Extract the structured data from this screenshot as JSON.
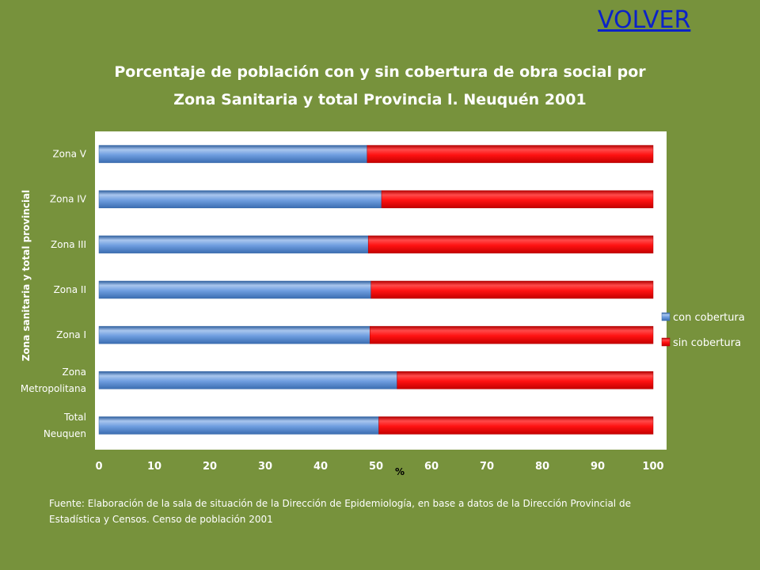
{
  "nav": {
    "back_link": "VOLVER"
  },
  "footnote": "Fuente: Elaboración de la sala de situación de la Dirección de Epidemiología, en base a datos de la Dirección Provincial de Estadística y Censos. Censo de población 2001",
  "chart_data": {
    "type": "bar",
    "orientation": "horizontal",
    "stacked": true,
    "title": "Porcentaje de población con y sin cobertura de obra social por Zona Sanitaria  y total  Provincia l. Neuquén 2001",
    "xlabel": "%",
    "ylabel": "Zona sanitaria  y total provincial",
    "xlim": [
      0,
      100
    ],
    "xticks": [
      0,
      10,
      20,
      30,
      40,
      50,
      60,
      70,
      80,
      90,
      100
    ],
    "grid": false,
    "legend_position": "right",
    "categories": [
      [
        "Total",
        "Neuquen"
      ],
      [
        "Zona",
        "Metropolitana"
      ],
      [
        "Zona I"
      ],
      [
        "Zona II"
      ],
      [
        "Zona III"
      ],
      [
        "Zona IV"
      ],
      [
        "Zona V"
      ]
    ],
    "series": [
      {
        "name": "con cobertura",
        "color": "#4f81bd",
        "values": [
          50.5,
          53.8,
          48.9,
          49.1,
          48.6,
          51.0,
          48.4
        ]
      },
      {
        "name": "sin cobertura",
        "color": "#ff0000",
        "values": [
          49.5,
          46.2,
          51.1,
          50.9,
          51.4,
          49.0,
          51.6
        ]
      }
    ]
  }
}
